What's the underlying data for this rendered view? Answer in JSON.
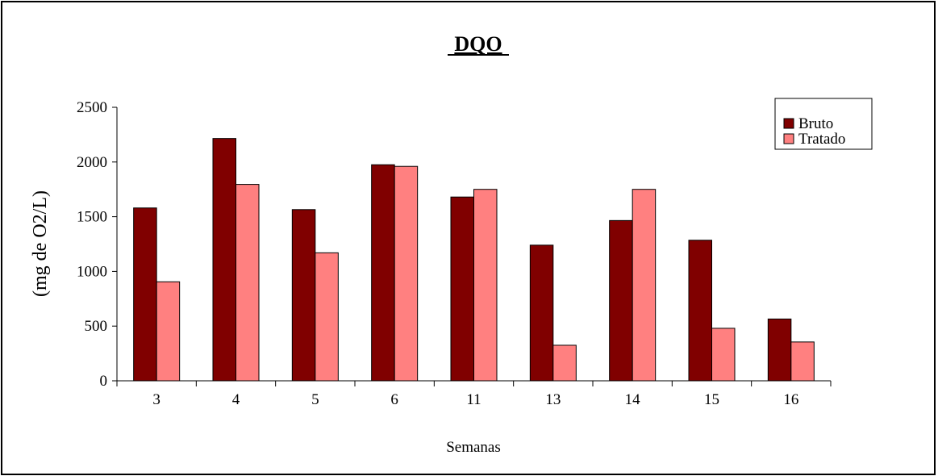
{
  "chart_data": {
    "type": "bar",
    "title": "DQO",
    "xlabel": "Semanas",
    "ylabel": "(mg de O2/L)",
    "categories": [
      "3",
      "4",
      "5",
      "6",
      "11",
      "13",
      "14",
      "15",
      "16"
    ],
    "ylim": [
      0,
      2500
    ],
    "yticks": [
      0,
      500,
      1000,
      1500,
      2000,
      2500
    ],
    "ytick_labels": [
      "0",
      "500",
      "1000",
      "1500",
      "2000",
      "2500"
    ],
    "grid": false,
    "legend_position": "top-right",
    "series": [
      {
        "name": "Bruto",
        "color": "#800000",
        "values": [
          1580,
          2215,
          1565,
          1975,
          1680,
          1240,
          1465,
          1285,
          565
        ]
      },
      {
        "name": "Tratado",
        "color": "#FF8080",
        "values": [
          905,
          1795,
          1170,
          1960,
          1750,
          325,
          1750,
          480,
          355
        ]
      }
    ]
  }
}
